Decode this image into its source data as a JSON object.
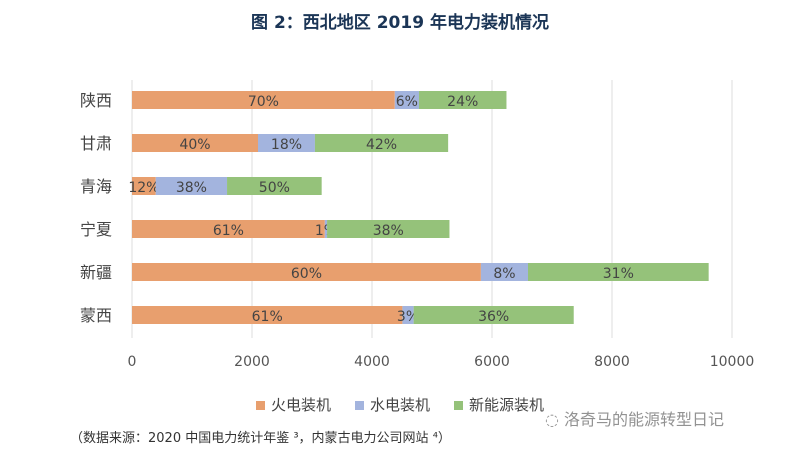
{
  "chart_data": {
    "type": "bar",
    "orientation": "horizontal",
    "stacked": true,
    "title": "图 2：西北地区 2019 年电力装机情况",
    "categories": [
      "陕西",
      "甘肃",
      "青海",
      "宁夏",
      "新疆",
      "蒙西"
    ],
    "series": [
      {
        "name": "火电装机",
        "color": "#e89f6e",
        "values": [
          4380,
          2100,
          396,
          3214,
          5815,
          4507
        ],
        "labels": [
          "70%",
          "40%",
          "12%",
          "61%",
          "60%",
          "61%"
        ]
      },
      {
        "name": "水电装机",
        "color": "#a3b4de",
        "values": [
          403,
          949,
          1188,
          37,
          785,
          187
        ],
        "labels": [
          "6%",
          "18%",
          "38%",
          "1%",
          "8%",
          "3%"
        ]
      },
      {
        "name": "新能源装机",
        "color": "#95c27a",
        "values": [
          1458,
          2220,
          1577,
          2040,
          3011,
          2668
        ],
        "labels": [
          "24%",
          "42%",
          "50%",
          "38%",
          "31%",
          "36%"
        ]
      }
    ],
    "xlim": [
      0,
      10000
    ],
    "xticks": [
      "0",
      "2000",
      "4000",
      "6000",
      "8000",
      "10000"
    ],
    "grid": true,
    "legend": "bottom"
  },
  "source": "（数据来源：2020 中国电力统计年鉴 ³，内蒙古电力公司网站 ⁴）",
  "watermark": "洛奇马的能源转型日记"
}
